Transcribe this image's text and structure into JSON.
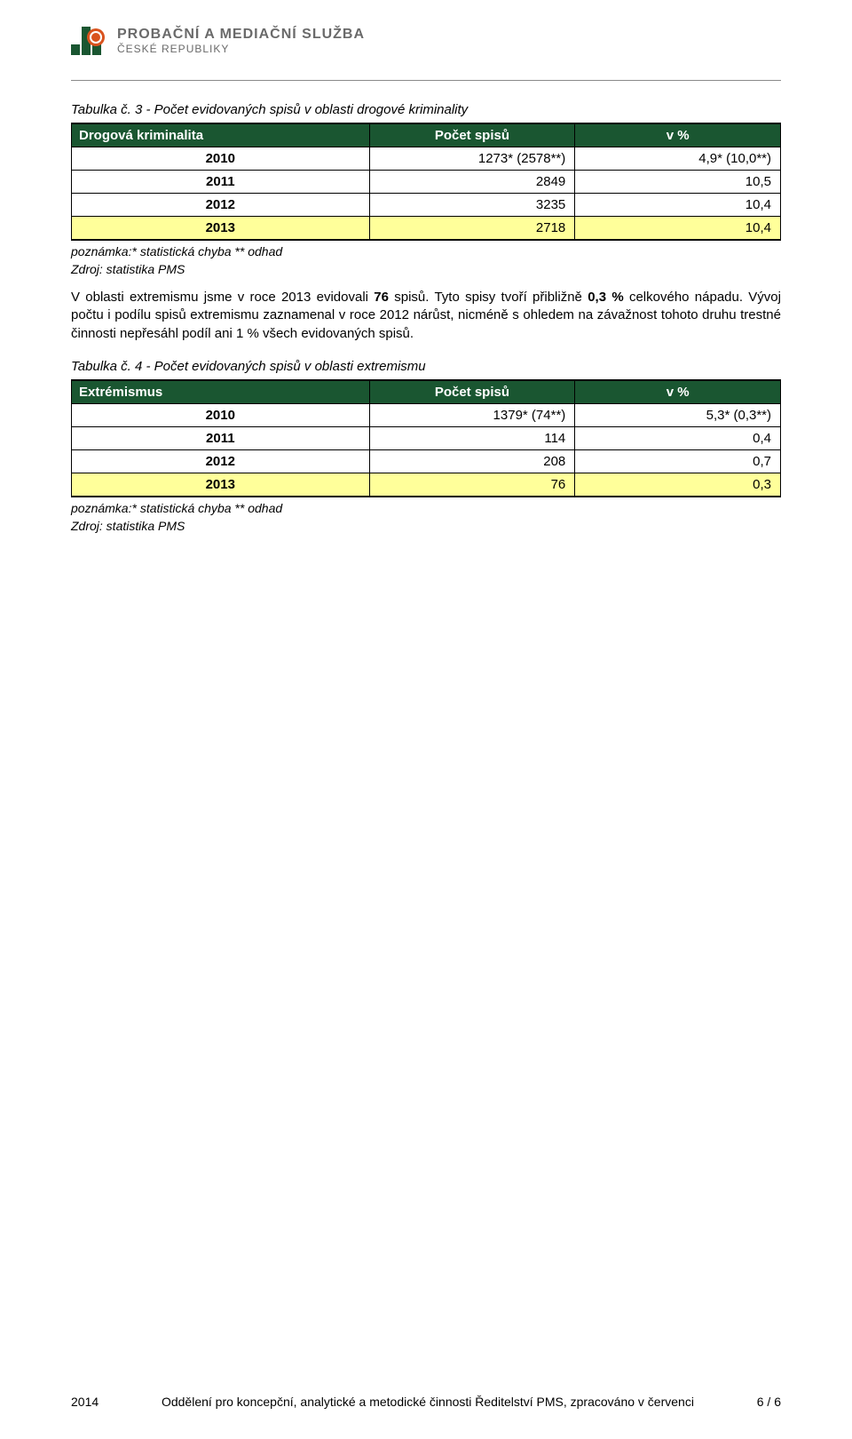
{
  "header": {
    "brand_line1": "PROBAČNÍ A MEDIAČNÍ SLUŽBA",
    "brand_line2": "ČESKÉ REPUBLIKY",
    "logo_colors": {
      "bars": "#1a5631",
      "circle": "#d9531e"
    }
  },
  "section1": {
    "caption": "Tabulka č. 3 - Počet evidovaných spisů v oblasti drogové kriminality",
    "columns": [
      "Drogová kriminalita",
      "Počet spisů",
      "v %"
    ],
    "rows": [
      {
        "year": "2010",
        "count": "1273* (2578**)",
        "pct": "4,9* (10,0**)",
        "highlight": false
      },
      {
        "year": "2011",
        "count": "2849",
        "pct": "10,5",
        "highlight": false
      },
      {
        "year": "2012",
        "count": "3235",
        "pct": "10,4",
        "highlight": false
      },
      {
        "year": "2013",
        "count": "2718",
        "pct": "10,4",
        "highlight": true
      }
    ],
    "note_a": "poznámka:* statistická chyba ** odhad",
    "note_b": "Zdroj: statistika PMS"
  },
  "paragraph1": {
    "text_before_bold1": "V oblasti extremismu jsme v roce 2013 evidovali ",
    "bold1": "76",
    "text_mid1": " spisů. Tyto spisy tvoří přibližně ",
    "bold2": "0,3 %",
    "text_after": " celkového nápadu. Vývoj počtu i podílu spisů extremismu zaznamenal v roce 2012 nárůst, nicméně s ohledem na závažnost tohoto druhu trestné činnosti nepřesáhl podíl ani 1 % všech evidovaných spisů."
  },
  "section2": {
    "caption": "Tabulka č. 4 - Počet evidovaných spisů v oblasti extremismu",
    "columns": [
      "Extrémismus",
      "Počet spisů",
      "v %"
    ],
    "rows": [
      {
        "year": "2010",
        "count": "1379* (74**)",
        "pct": "5,3* (0,3**)",
        "highlight": false
      },
      {
        "year": "2011",
        "count": "114",
        "pct": "0,4",
        "highlight": false
      },
      {
        "year": "2012",
        "count": "208",
        "pct": "0,7",
        "highlight": false
      },
      {
        "year": "2013",
        "count": "76",
        "pct": "0,3",
        "highlight": true
      }
    ],
    "note_a": "poznámka:* statistická chyba ** odhad",
    "note_b": "Zdroj: statistika PMS"
  },
  "footer": {
    "year": "2014",
    "center": "Oddělení pro koncepční, analytické a metodické činnosti Ředitelství PMS, zpracováno v červenci",
    "page": "6 / 6"
  },
  "style": {
    "header_bg": "#1a5631",
    "header_fg": "#ffffff",
    "highlight_bg": "#ffff9a",
    "border_color": "#000000",
    "body_font_size_pt": 11,
    "caption_italic": true
  }
}
